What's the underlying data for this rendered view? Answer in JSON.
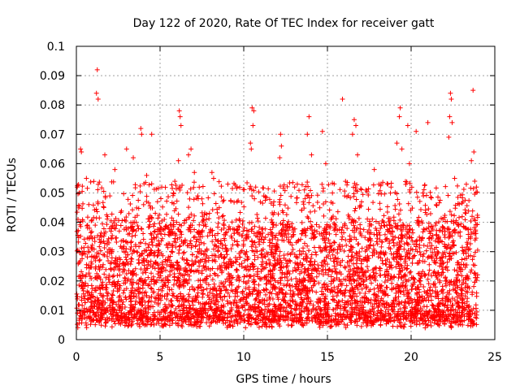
{
  "chart_data": {
    "type": "scatter",
    "title": "Day 122 of 2020, Rate Of TEC Index for receiver gatt",
    "xlabel": "GPS time / hours",
    "ylabel": "ROTI / TECUs",
    "xlim": [
      0,
      25
    ],
    "ylim": [
      0,
      0.1
    ],
    "x_ticks": [
      "0",
      "5",
      "10",
      "15",
      "20",
      "25"
    ],
    "y_ticks": [
      "0",
      "0.01",
      "0.02",
      "0.03",
      "0.04",
      "0.05",
      "0.06",
      "0.07",
      "0.08",
      "0.09",
      "0.1"
    ],
    "grid": true,
    "marker": "+",
    "color": "#ff0000",
    "series": [
      {
        "points": [
          [
            1.25,
            0.092
          ],
          [
            1.2,
            0.084
          ],
          [
            1.3,
            0.082
          ],
          [
            0.25,
            0.065
          ],
          [
            0.3,
            0.064
          ],
          [
            0.05,
            0.052
          ],
          [
            1.7,
            0.063
          ],
          [
            2.3,
            0.058
          ],
          [
            3.0,
            0.065
          ],
          [
            3.4,
            0.062
          ],
          [
            3.85,
            0.072
          ],
          [
            3.9,
            0.07
          ],
          [
            4.5,
            0.07
          ],
          [
            6.15,
            0.078
          ],
          [
            6.2,
            0.076
          ],
          [
            6.25,
            0.073
          ],
          [
            6.1,
            0.061
          ],
          [
            6.85,
            0.065
          ],
          [
            6.7,
            0.063
          ],
          [
            7.05,
            0.057
          ],
          [
            8.1,
            0.057
          ],
          [
            8.2,
            0.055
          ],
          [
            9.05,
            0.053
          ],
          [
            10.5,
            0.079
          ],
          [
            10.6,
            0.078
          ],
          [
            10.55,
            0.073
          ],
          [
            10.4,
            0.067
          ],
          [
            10.45,
            0.065
          ],
          [
            12.2,
            0.07
          ],
          [
            12.25,
            0.066
          ],
          [
            12.15,
            0.062
          ],
          [
            13.9,
            0.076
          ],
          [
            13.8,
            0.07
          ],
          [
            14.7,
            0.071
          ],
          [
            14.05,
            0.063
          ],
          [
            14.9,
            0.06
          ],
          [
            15.9,
            0.082
          ],
          [
            16.6,
            0.075
          ],
          [
            16.7,
            0.073
          ],
          [
            16.5,
            0.07
          ],
          [
            16.8,
            0.063
          ],
          [
            17.8,
            0.058
          ],
          [
            18.2,
            0.053
          ],
          [
            19.35,
            0.079
          ],
          [
            19.3,
            0.076
          ],
          [
            19.15,
            0.067
          ],
          [
            19.45,
            0.065
          ],
          [
            19.8,
            0.073
          ],
          [
            20.3,
            0.071
          ],
          [
            19.9,
            0.06
          ],
          [
            21.0,
            0.074
          ],
          [
            22.35,
            0.084
          ],
          [
            22.4,
            0.082
          ],
          [
            22.3,
            0.076
          ],
          [
            22.45,
            0.074
          ],
          [
            22.25,
            0.069
          ],
          [
            22.6,
            0.055
          ],
          [
            23.7,
            0.085
          ],
          [
            23.75,
            0.064
          ],
          [
            23.6,
            0.061
          ],
          [
            23.8,
            0.054
          ],
          [
            23.9,
            0.052
          ],
          [
            0.6,
            0.055
          ],
          [
            2.0,
            0.049
          ],
          [
            4.2,
            0.056
          ],
          [
            5.1,
            0.052
          ],
          [
            5.8,
            0.05
          ],
          [
            7.5,
            0.048
          ],
          [
            9.6,
            0.047
          ],
          [
            11.2,
            0.049
          ],
          [
            11.8,
            0.047
          ],
          [
            13.2,
            0.053
          ],
          [
            15.3,
            0.05
          ],
          [
            17.3,
            0.051
          ],
          [
            18.8,
            0.052
          ],
          [
            20.7,
            0.05
          ],
          [
            21.5,
            0.046
          ],
          [
            23.1,
            0.047
          ]
        ]
      }
    ]
  }
}
